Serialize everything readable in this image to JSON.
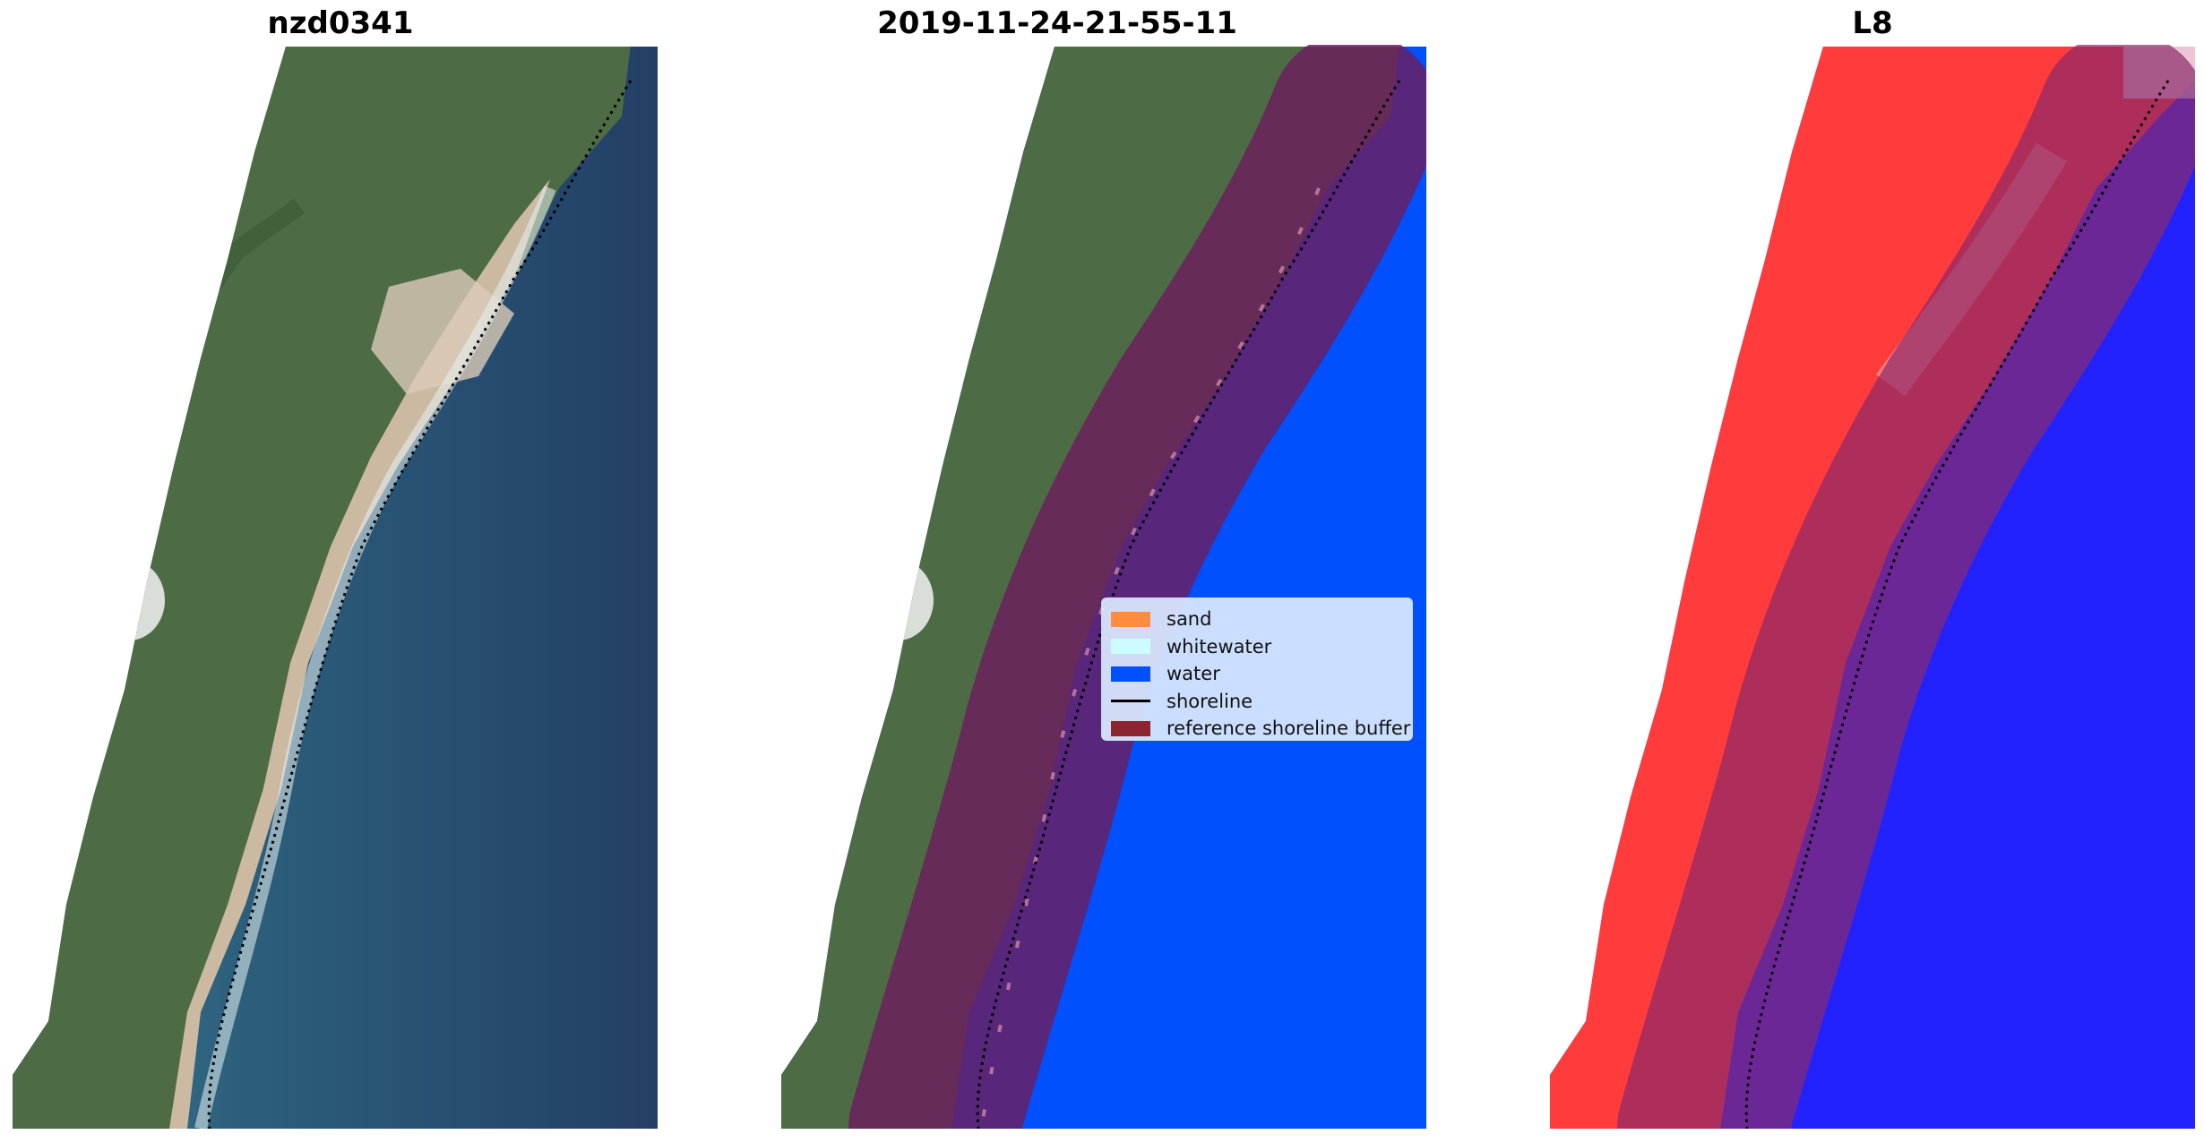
{
  "panels": [
    {
      "title": "nzd0341",
      "view": "rgb-image"
    },
    {
      "title": "2019-11-24-21-55-11",
      "view": "classified-image"
    },
    {
      "title": "L8",
      "view": "index-image"
    }
  ],
  "legend": {
    "items": [
      {
        "label": "sand",
        "color": "#ff8c3f",
        "kind": "patch"
      },
      {
        "label": "whitewater",
        "color": "#ccfcff",
        "kind": "patch"
      },
      {
        "label": "water",
        "color": "#0050ff",
        "kind": "patch"
      },
      {
        "label": "shoreline",
        "color": "#000000",
        "kind": "line"
      },
      {
        "label": "reference shoreline buffer",
        "color": "#8b2630",
        "kind": "patch"
      }
    ]
  },
  "colors": {
    "land": "#4d6b45",
    "sea": "#254a6e",
    "sand": "#d4c0a8",
    "water_class": "#0050ff",
    "buffer": "#8b2630",
    "index_land": "#ff3b3b",
    "index_water": "#2222ff"
  }
}
